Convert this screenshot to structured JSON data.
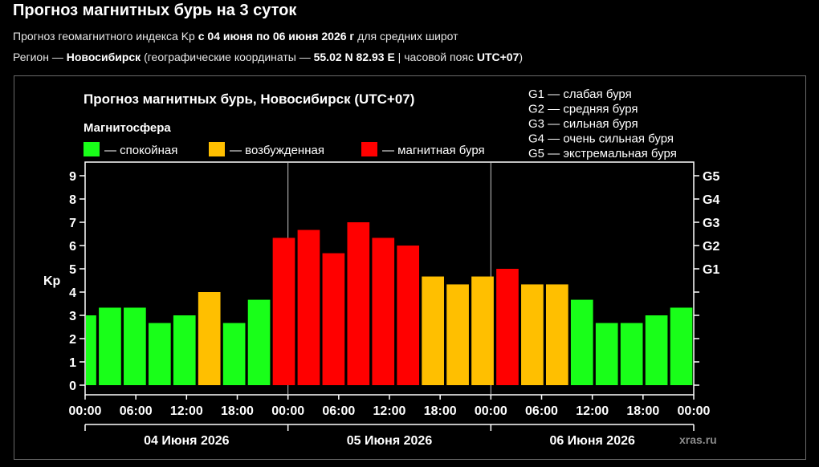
{
  "page": {
    "title": "Прогноз магнитных бурь на 3 суток",
    "subtitle": {
      "prefix": "Прогноз геомагнитного индекса Kp ",
      "range": "с 04 июня по 06 июня 2026 г",
      "suffix": " для средних широт"
    },
    "region": {
      "prefix": "Регион — ",
      "city": "Новосибирск",
      "coords_prefix": " (географические координаты — ",
      "coords": "55.02 N 82.93 E",
      "tz_prefix": " | часовой пояс ",
      "tz": "UTC+07",
      "suffix": ")"
    }
  },
  "chart_data": {
    "type": "bar",
    "title": "Прогноз магнитных бурь, Новосибирск (UTC+07)",
    "ylabel": "Kp",
    "ylim": [
      0,
      9
    ],
    "yticks": [
      "0",
      "1",
      "2",
      "3",
      "4",
      "5",
      "6",
      "7",
      "8",
      "9"
    ],
    "right_ticks": [
      {
        "label": "G1",
        "value": 5
      },
      {
        "label": "G2",
        "value": 6
      },
      {
        "label": "G3",
        "value": 7
      },
      {
        "label": "G4",
        "value": 8
      },
      {
        "label": "G5",
        "value": 9
      }
    ],
    "xtick_labels": [
      "00:00",
      "06:00",
      "12:00",
      "18:00",
      "00:00",
      "06:00",
      "12:00",
      "18:00",
      "00:00",
      "06:00",
      "12:00",
      "18:00",
      "00:00"
    ],
    "days": [
      "04 Июня 2026",
      "05 Июня 2026",
      "06 Июня 2026"
    ],
    "values": [
      3.0,
      3.33,
      3.33,
      2.67,
      3.0,
      4.0,
      2.67,
      3.67,
      6.33,
      6.67,
      5.67,
      7.0,
      6.33,
      6.0,
      4.67,
      4.33,
      4.67,
      5.0,
      4.33,
      4.33,
      3.67,
      2.67,
      2.67,
      3.0,
      3.33
    ],
    "states": [
      "quiet",
      "quiet",
      "quiet",
      "quiet",
      "quiet",
      "excited",
      "quiet",
      "quiet",
      "storm",
      "storm",
      "storm",
      "storm",
      "storm",
      "storm",
      "excited",
      "excited",
      "excited",
      "storm",
      "excited",
      "excited",
      "quiet",
      "quiet",
      "quiet",
      "quiet",
      "quiet"
    ],
    "colors": {
      "quiet": "#19ff19",
      "excited": "#ffbf00",
      "storm": "#ff0000"
    },
    "legend_title": "Магнитосфера",
    "legend": [
      {
        "key": "quiet",
        "label": "— спокойная"
      },
      {
        "key": "excited",
        "label": "— возбужденная"
      },
      {
        "key": "storm",
        "label": "— магнитная буря"
      }
    ],
    "g_scale": [
      "G1 — слабая буря",
      "G2 — средняя буря",
      "G3 — сильная буря",
      "G4 — очень сильная буря",
      "G5 — экстремальная буря"
    ],
    "watermark": "xras.ru"
  }
}
